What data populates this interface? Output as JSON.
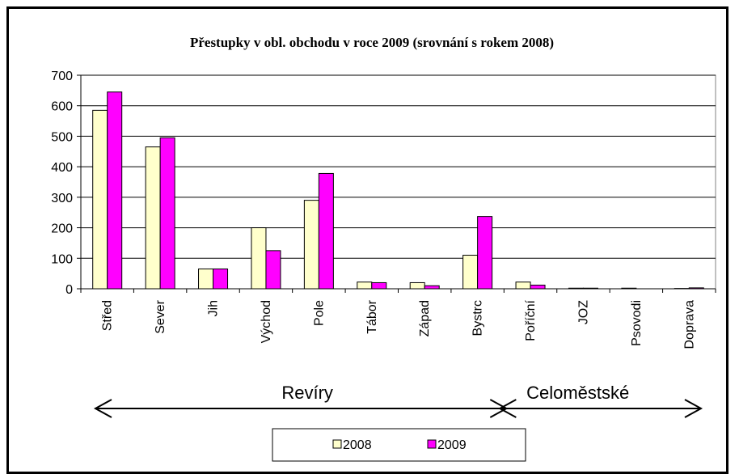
{
  "chart_data": {
    "type": "bar",
    "title": "Přestupky v obl. obchodu v roce 2009 (srovnání s rokem 2008)",
    "categories": [
      "Střed",
      "Sever",
      "Jih",
      "Východ",
      "Pole",
      "Tábor",
      "Západ",
      "Bystrc",
      "Poříční",
      "JOZ",
      "Psovodi",
      "Doprava"
    ],
    "series": [
      {
        "name": "2008",
        "color": "#ffffcc",
        "values": [
          585,
          465,
          65,
          200,
          290,
          22,
          20,
          110,
          22,
          2,
          2,
          1
        ]
      },
      {
        "name": "2009",
        "color": "#ff00ff",
        "values": [
          645,
          495,
          65,
          125,
          378,
          20,
          10,
          237,
          12,
          2,
          0,
          3
        ]
      }
    ],
    "ylim": [
      0,
      700
    ],
    "yticks": [
      0,
      100,
      200,
      300,
      400,
      500,
      600,
      700
    ],
    "grid": true,
    "legend": "bottom",
    "groups": [
      {
        "label": "Revíry",
        "from": 0,
        "to": 7
      },
      {
        "label": "Celoměstské",
        "from": 8,
        "to": 11
      }
    ]
  }
}
